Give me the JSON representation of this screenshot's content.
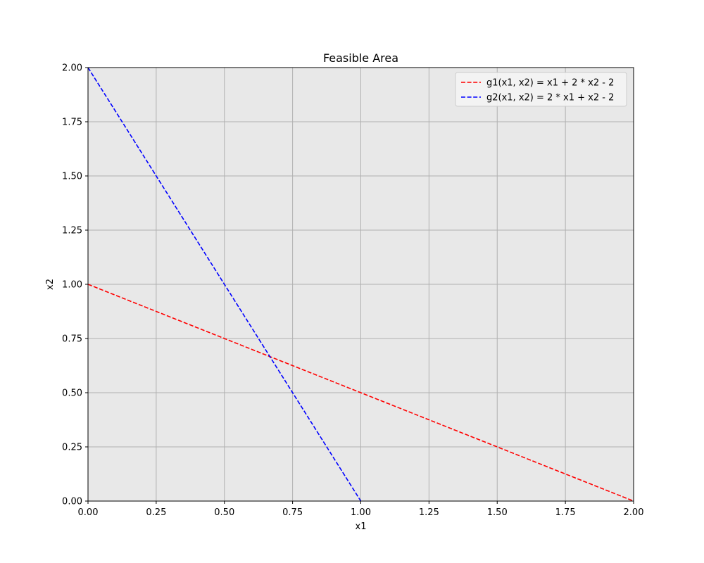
{
  "chart_data": {
    "type": "line",
    "title": "Feasible Area",
    "xlabel": "x1",
    "ylabel": "x2",
    "xlim": [
      0,
      2
    ],
    "ylim": [
      0,
      2
    ],
    "xticks": [
      "0.00",
      "0.25",
      "0.50",
      "0.75",
      "1.00",
      "1.25",
      "1.50",
      "1.75",
      "2.00"
    ],
    "yticks": [
      "0.00",
      "0.25",
      "0.50",
      "0.75",
      "1.00",
      "1.25",
      "1.50",
      "1.75",
      "2.00"
    ],
    "grid": true,
    "plot_background": "#e8e8e8",
    "legend_position": "top-right",
    "series": [
      {
        "name": "g1(x1, x2) = x1 + 2 * x2 - 2",
        "color": "#ff0000",
        "style": "dashed",
        "x": [
          0,
          2
        ],
        "y": [
          1,
          0
        ]
      },
      {
        "name": "g2(x1, x2) = 2 * x1 + x2 - 2",
        "color": "#0000ff",
        "style": "dashed",
        "x": [
          0,
          1
        ],
        "y": [
          2,
          0
        ]
      }
    ]
  }
}
